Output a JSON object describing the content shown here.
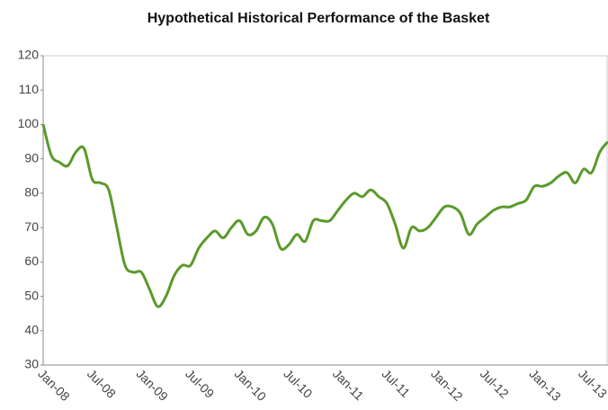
{
  "chart_data": {
    "type": "line",
    "title": "Hypothetical Historical Performance of the Basket",
    "categories": [
      "Jan-08",
      null,
      null,
      null,
      null,
      null,
      "Jul-08",
      null,
      null,
      null,
      null,
      null,
      "Jan-09",
      null,
      null,
      null,
      null,
      null,
      "Jul-09",
      null,
      null,
      null,
      null,
      null,
      "Jan-10",
      null,
      null,
      null,
      null,
      null,
      "Jul-10",
      null,
      null,
      null,
      null,
      null,
      "Jan-11",
      null,
      null,
      null,
      null,
      null,
      "Jul-11",
      null,
      null,
      null,
      null,
      null,
      "Jan-12",
      null,
      null,
      null,
      null,
      null,
      "Jul-12",
      null,
      null,
      null,
      null,
      null,
      "Jan-13",
      null,
      null,
      null,
      null,
      null,
      "Jul-13",
      null,
      null,
      null
    ],
    "series": [
      {
        "name": "Basket",
        "color": "#5a9a2a",
        "values": [
          100,
          91,
          89,
          88,
          92,
          93,
          84,
          83,
          81,
          70,
          59,
          57,
          57,
          52,
          47,
          50,
          56,
          59,
          59,
          64,
          67,
          69,
          67,
          70,
          72,
          68,
          69,
          73,
          71,
          64,
          65,
          68,
          66,
          72,
          72,
          72,
          75,
          78,
          80,
          79,
          81,
          79,
          77,
          71,
          64,
          70,
          69,
          70,
          73,
          76,
          76,
          74,
          68,
          71,
          73,
          75,
          76,
          76,
          77,
          78,
          82,
          82,
          83,
          85,
          86,
          83,
          87,
          86,
          92,
          95
        ]
      }
    ],
    "ylim": [
      30,
      120
    ],
    "yticks": [
      30,
      40,
      50,
      60,
      70,
      80,
      90,
      100,
      110,
      120
    ],
    "grid": false
  }
}
